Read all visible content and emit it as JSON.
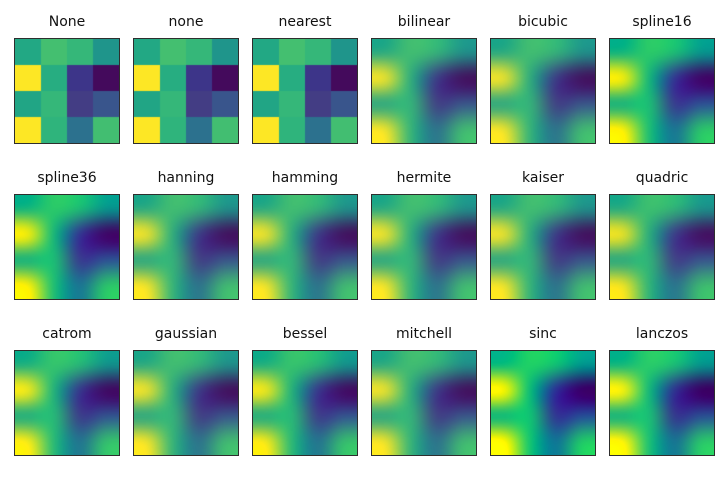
{
  "figure": {
    "background": "#ffffff",
    "frame_color": "#2e2e2e",
    "rows": 3,
    "cols": 6
  },
  "colormap": "viridis",
  "panels": [
    {
      "label": "None",
      "smooth": false
    },
    {
      "label": "none",
      "smooth": false
    },
    {
      "label": "nearest",
      "smooth": false
    },
    {
      "label": "bilinear",
      "smooth": true
    },
    {
      "label": "bicubic",
      "smooth": true
    },
    {
      "label": "spline16",
      "smooth": true
    },
    {
      "label": "spline36",
      "smooth": true
    },
    {
      "label": "hanning",
      "smooth": true
    },
    {
      "label": "hamming",
      "smooth": true
    },
    {
      "label": "hermite",
      "smooth": true
    },
    {
      "label": "kaiser",
      "smooth": true
    },
    {
      "label": "quadric",
      "smooth": true
    },
    {
      "label": "catrom",
      "smooth": true
    },
    {
      "label": "gaussian",
      "smooth": true
    },
    {
      "label": "bessel",
      "smooth": true
    },
    {
      "label": "mitchell",
      "smooth": true
    },
    {
      "label": "sinc",
      "smooth": true
    },
    {
      "label": "lanczos",
      "smooth": true
    }
  ],
  "chart_data": {
    "type": "heatmap",
    "title": "",
    "subplot_titles": [
      "None",
      "none",
      "nearest",
      "bilinear",
      "bicubic",
      "spline16",
      "spline36",
      "hanning",
      "hamming",
      "hermite",
      "kaiser",
      "quadric",
      "catrom",
      "gaussian",
      "bessel",
      "mitchell",
      "sinc",
      "lanczos"
    ],
    "layout": {
      "rows": 3,
      "cols": 6,
      "axes_visible": false,
      "legend": "none"
    },
    "grid_shape": [
      4,
      4
    ],
    "grid_values": [
      [
        0.62,
        0.72,
        0.68,
        0.55
      ],
      [
        1.0,
        0.63,
        0.18,
        0.02
      ],
      [
        0.6,
        0.68,
        0.2,
        0.28
      ],
      [
        1.0,
        0.66,
        0.38,
        0.71
      ]
    ],
    "grid_colors": [
      [
        "#22a884",
        "#44bf70",
        "#35b779",
        "#1f958b"
      ],
      [
        "#fde725",
        "#27ad81",
        "#3d3589",
        "#440a5c"
      ],
      [
        "#21a585",
        "#35b779",
        "#433d84",
        "#39558c"
      ],
      [
        "#fde725",
        "#2fb47c",
        "#2c718e",
        "#42be71"
      ]
    ]
  }
}
